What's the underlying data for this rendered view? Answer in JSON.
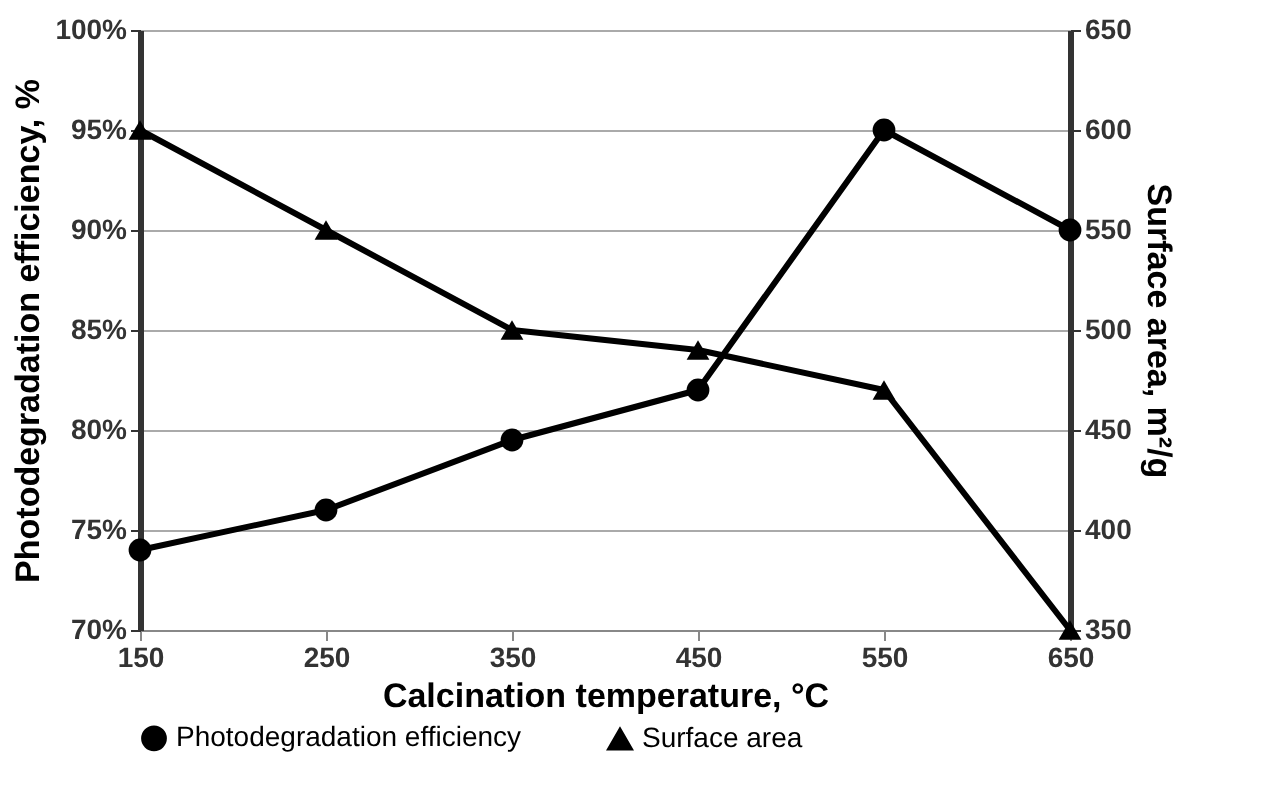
{
  "chart_data": {
    "type": "line",
    "xlabel": "Calcination temperature, °C",
    "ylabel": "Photodegradation efficiency, %",
    "y2label": "Surface area, m²/g",
    "x": [
      150,
      250,
      350,
      450,
      550,
      650
    ],
    "series": [
      {
        "name": "Photodegradation efficiency",
        "color": "#000000",
        "marker": "circle",
        "values": [
          74,
          76,
          79.5,
          82,
          95,
          90
        ]
      },
      {
        "name": "Surface area",
        "color": "#000000",
        "marker": "triangle",
        "axis": "y2",
        "values": [
          600,
          550,
          500,
          490,
          470,
          350
        ]
      }
    ],
    "xlim": [
      150,
      650
    ],
    "xticks": [
      150,
      250,
      350,
      450,
      550,
      650
    ],
    "ylim": [
      70,
      100
    ],
    "yticks": [
      {
        "value": 70,
        "label": "70%"
      },
      {
        "value": 75,
        "label": "75%"
      },
      {
        "value": 80,
        "label": "80%"
      },
      {
        "value": 85,
        "label": "85%"
      },
      {
        "value": 90,
        "label": "90%"
      },
      {
        "value": 95,
        "label": "95%"
      },
      {
        "value": 100,
        "label": "100%"
      }
    ],
    "y2lim": [
      350,
      650
    ],
    "y2ticks": [
      350,
      400,
      450,
      500,
      550,
      600,
      650
    ],
    "grid": "y",
    "legend": "bottom",
    "line_style": "solid"
  }
}
